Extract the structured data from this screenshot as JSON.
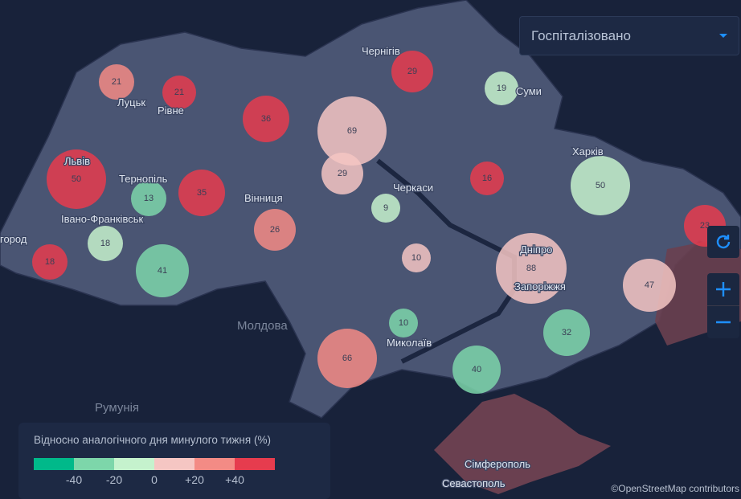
{
  "filter": {
    "selected": "Госпіталізовано",
    "icon": "caret-down-icon"
  },
  "controls": {
    "refresh_icon": "refresh-icon",
    "zoom_in_icon": "plus-icon",
    "zoom_out_icon": "minus-icon"
  },
  "legend": {
    "title": "Відносно аналогічного дня минулого тижня (%)",
    "colors": [
      "#00b98a",
      "#7dd6aa",
      "#c5f2cd",
      "#f5c6c3",
      "#f38b85",
      "#e63c4e"
    ],
    "ticks": [
      "-40",
      "-20",
      "0",
      "+20",
      "+40"
    ]
  },
  "countries": [
    {
      "name": "Молдова"
    },
    {
      "name": "Румунія"
    }
  ],
  "cities": [
    "Чернігів",
    "Суми",
    "Луцьк",
    "Рівне",
    "Львів",
    "Тернопіль",
    "Харків",
    "Вінниця",
    "Черкаси",
    "Івано-Франківськ",
    "город",
    "Дніпро",
    "Запоріжжя",
    "Миколаїв",
    "Сімферополь",
    "Севастополь"
  ],
  "markers": [
    {
      "value": "21",
      "level": 4
    },
    {
      "value": "21",
      "level": 5
    },
    {
      "value": "36",
      "level": 5
    },
    {
      "value": "69",
      "level": 3
    },
    {
      "value": "29",
      "level": 5
    },
    {
      "value": "19",
      "level": 2
    },
    {
      "value": "50",
      "level": 5
    },
    {
      "value": "13",
      "level": 1
    },
    {
      "value": "35",
      "level": 5
    },
    {
      "value": "29",
      "level": 3
    },
    {
      "value": "16",
      "level": 5
    },
    {
      "value": "50",
      "level": 2
    },
    {
      "value": "9",
      "level": 2
    },
    {
      "value": "26",
      "level": 4
    },
    {
      "value": "18",
      "level": 2
    },
    {
      "value": "18",
      "level": 5
    },
    {
      "value": "41",
      "level": 1
    },
    {
      "value": "10",
      "level": 3
    },
    {
      "value": "88",
      "level": 3
    },
    {
      "value": "47",
      "level": 3
    },
    {
      "value": "23",
      "level": 5
    },
    {
      "value": "10",
      "level": 1
    },
    {
      "value": "32",
      "level": 1
    },
    {
      "value": "66",
      "level": 4
    },
    {
      "value": "40",
      "level": 1
    }
  ],
  "attribution": "©OpenStreetMap contributors"
}
